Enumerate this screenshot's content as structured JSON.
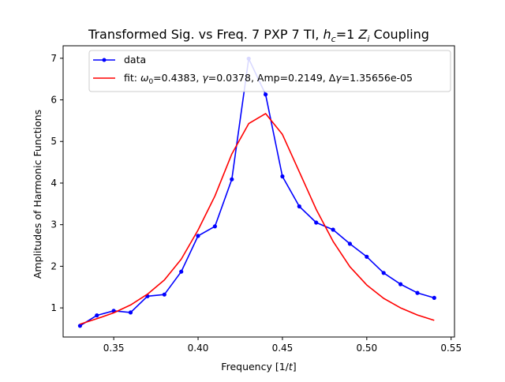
{
  "chart_data": {
    "type": "line",
    "title_main": "Transformed Sig. vs Freq. 7 PXP 7 TI,",
    "title_math_h": "h",
    "title_math_sub": "c",
    "title_rest": "=1",
    "title_math_z": "Z",
    "title_math_zsub": "i",
    "title_end": "Coupling",
    "xlabel_main": "Frequency [1/",
    "xlabel_math": "t",
    "xlabel_end": "]",
    "ylabel": "Amplitudes of Harmonic Functions",
    "xlim": [
      0.32,
      0.552
    ],
    "ylim": [
      0.3,
      7.3
    ],
    "xticks": [
      0.35,
      0.4,
      0.45,
      0.5,
      0.55
    ],
    "xtick_labels": [
      "0.35",
      "0.40",
      "0.45",
      "0.50",
      "0.55"
    ],
    "yticks": [
      1,
      2,
      3,
      4,
      5,
      6,
      7
    ],
    "ytick_labels": [
      "1",
      "2",
      "3",
      "4",
      "5",
      "6",
      "7"
    ],
    "grid": false,
    "legend_position": "top-right",
    "series": [
      {
        "name": "data",
        "color": "#0000ff",
        "marker": "circle",
        "x": [
          0.33,
          0.34,
          0.35,
          0.36,
          0.37,
          0.38,
          0.39,
          0.4,
          0.41,
          0.42,
          0.43,
          0.44,
          0.45,
          0.46,
          0.47,
          0.48,
          0.49,
          0.5,
          0.51,
          0.52,
          0.53,
          0.54
        ],
        "y": [
          0.57,
          0.82,
          0.93,
          0.89,
          1.28,
          1.32,
          1.87,
          2.73,
          2.96,
          4.09,
          6.99,
          6.13,
          4.16,
          3.44,
          3.05,
          2.88,
          2.54,
          2.23,
          1.84,
          1.57,
          1.36,
          1.24
        ]
      },
      {
        "name_prefix": "fit: ",
        "name_omega": "ω",
        "name_omega_sub": "0",
        "name_omega_val": "=0.4383, ",
        "name_gamma": "γ",
        "name_gamma_val": "=0.0378, Amp=0.2149, Δ",
        "name_dgamma": "γ",
        "name_dgamma_val": "=1.35656e-05",
        "color": "#ff0000",
        "marker": "none",
        "x": [
          0.33,
          0.34,
          0.35,
          0.36,
          0.37,
          0.38,
          0.39,
          0.4,
          0.41,
          0.42,
          0.43,
          0.44,
          0.45,
          0.46,
          0.47,
          0.48,
          0.49,
          0.5,
          0.51,
          0.52,
          0.53,
          0.54
        ],
        "y": [
          0.61,
          0.74,
          0.88,
          1.07,
          1.33,
          1.67,
          2.17,
          2.87,
          3.69,
          4.7,
          5.43,
          5.67,
          5.17,
          4.27,
          3.37,
          2.6,
          1.99,
          1.55,
          1.23,
          1.0,
          0.83,
          0.7
        ]
      }
    ],
    "legend_data_label": "data"
  }
}
